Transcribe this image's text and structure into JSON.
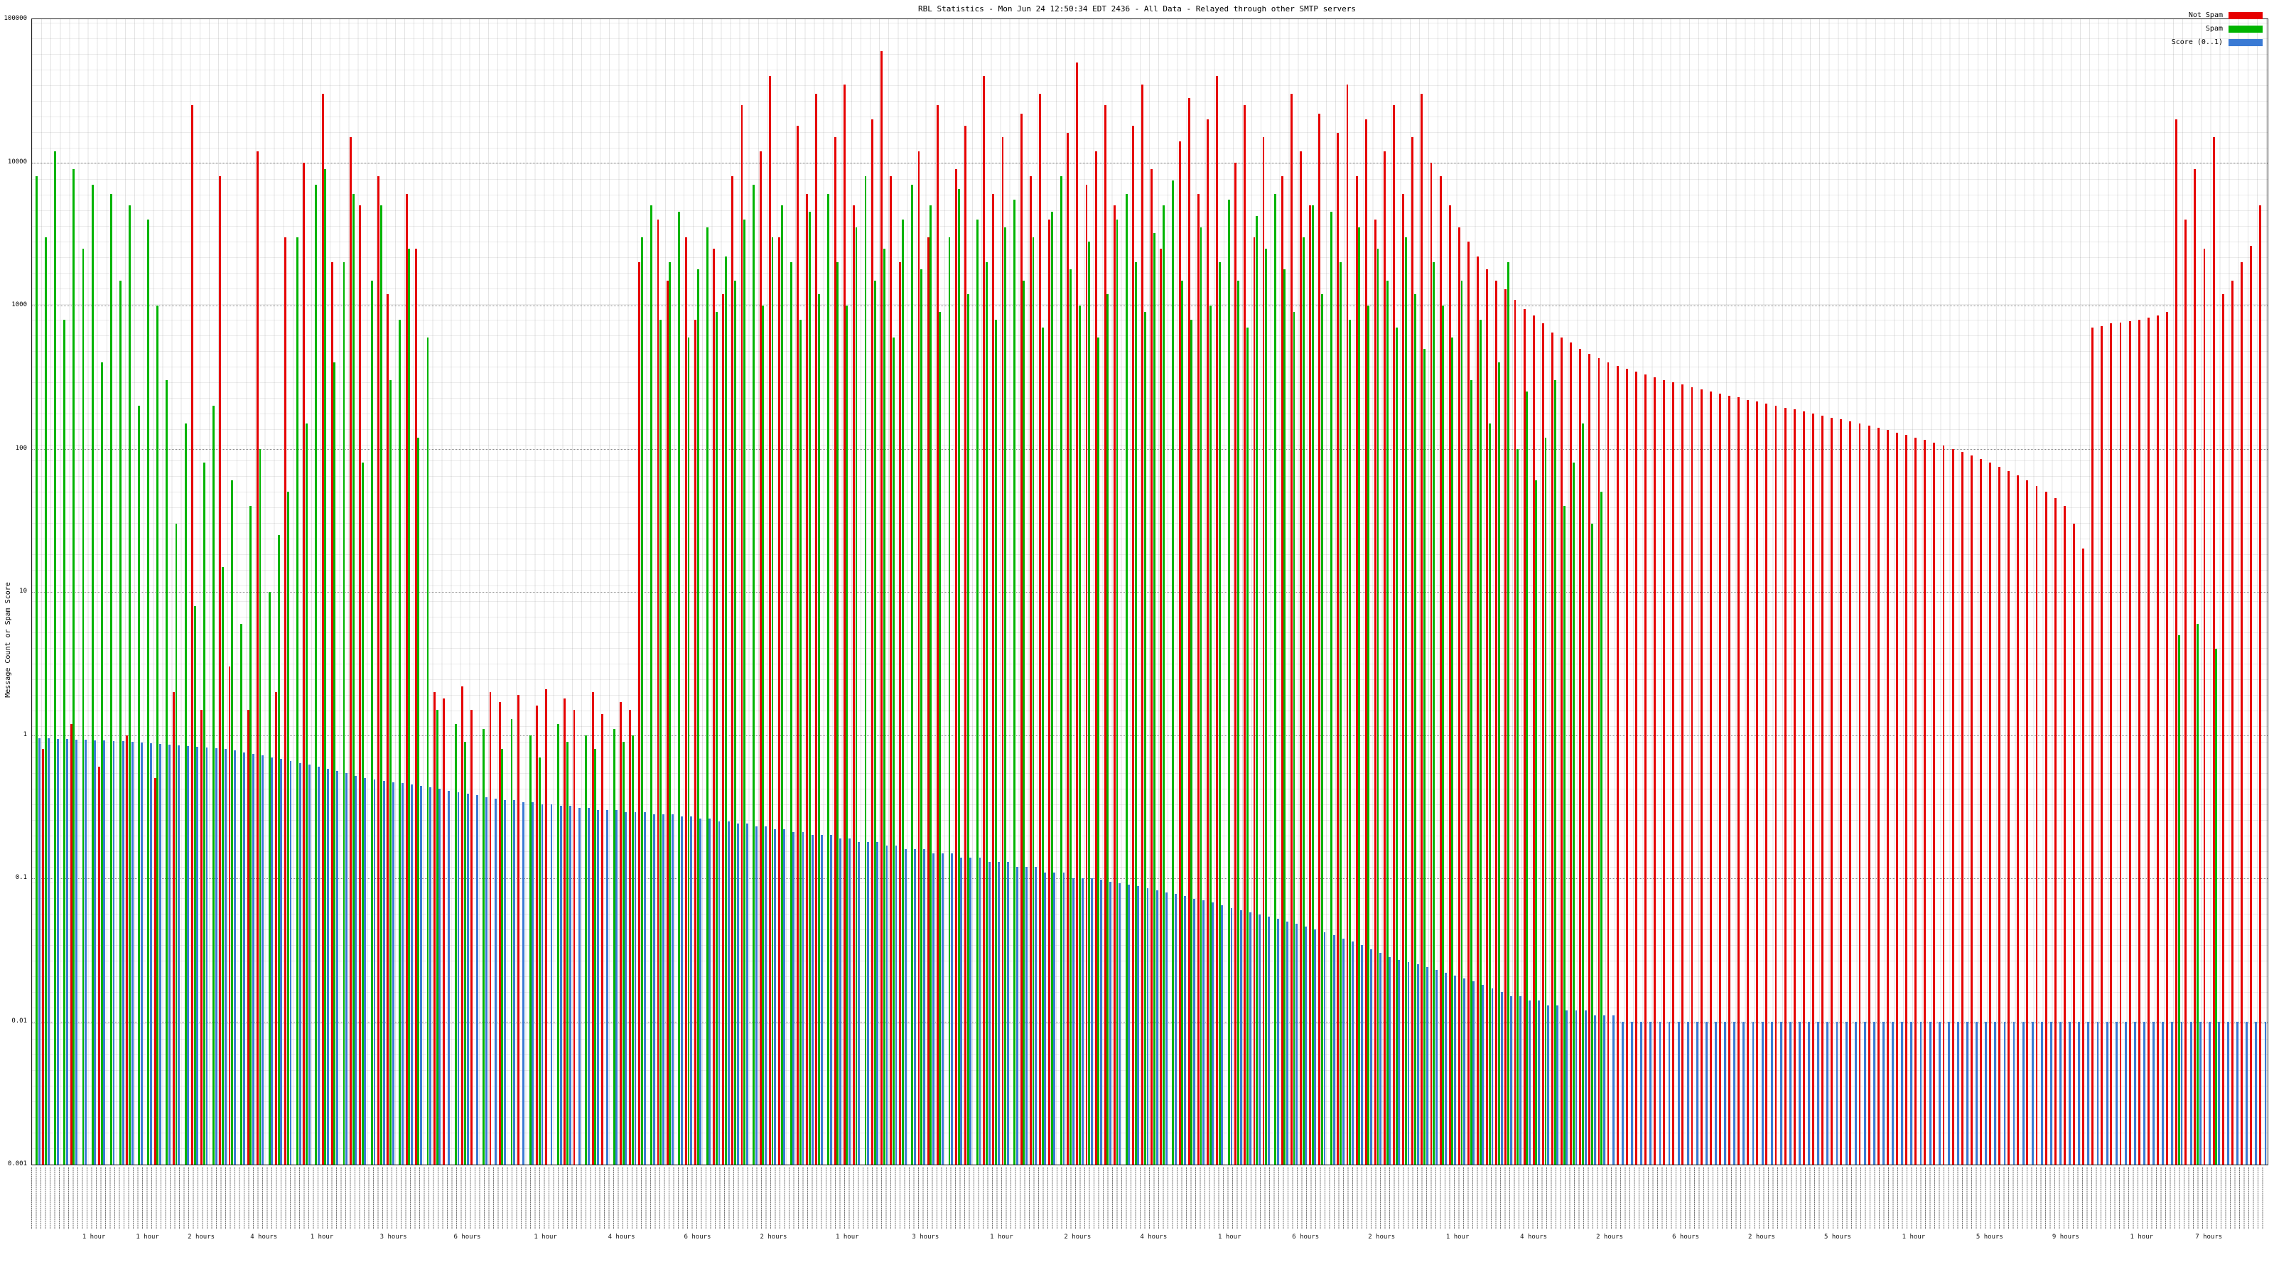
{
  "chart_data": {
    "type": "bar",
    "title": "RBL Statistics - Mon Jun 24 12:50:34 EDT 2436 - All Data - Relayed through other SMTP servers",
    "ylabel": "Message Count or Spam Score",
    "y_scale": "log",
    "ylim": [
      0.001,
      100000
    ],
    "yticks": [
      "100000",
      "10000",
      "1000",
      "100",
      "10",
      "1",
      "0.1",
      "0.01",
      "0.001"
    ],
    "grid": true,
    "legend_position": "top-right",
    "xtick_labels_illegible": true,
    "series": [
      {
        "name": "Not Spam",
        "color": "#e60000",
        "values": [
          0,
          0.8,
          0,
          0,
          1.2,
          0,
          0,
          0.6,
          0,
          0,
          1,
          0,
          0,
          0.5,
          0,
          2,
          0,
          25000,
          1.5,
          0,
          8000,
          3,
          0,
          1.5,
          12000,
          0,
          2,
          3000,
          0,
          10000,
          0,
          30000,
          2000,
          0,
          15000,
          5000,
          0,
          8000,
          1200,
          0,
          6000,
          2500,
          0,
          2,
          1.8,
          0,
          2.2,
          1.5,
          0,
          2,
          1.7,
          0,
          1.9,
          0,
          1.6,
          2.1,
          0,
          1.8,
          1.5,
          0,
          2,
          1.4,
          0,
          1.7,
          1.5,
          2000,
          0,
          4000,
          1500,
          0,
          3000,
          800,
          0,
          2500,
          1200,
          8000,
          25000,
          0,
          12000,
          40000,
          3000,
          0,
          18000,
          6000,
          30000,
          0,
          15000,
          35000,
          5000,
          0,
          20000,
          60000,
          8000,
          2000,
          0,
          12000,
          3000,
          25000,
          0,
          9000,
          18000,
          0,
          40000,
          6000,
          15000,
          0,
          22000,
          8000,
          30000,
          4000,
          0,
          16000,
          50000,
          7000,
          12000,
          25000,
          5000,
          0,
          18000,
          35000,
          9000,
          2500,
          0,
          14000,
          28000,
          6000,
          20000,
          40000,
          0,
          10000,
          25000,
          3000,
          15000,
          0,
          8000,
          30000,
          12000,
          5000,
          22000,
          0,
          16000,
          35000,
          8000,
          20000,
          4000,
          12000,
          25000,
          6000,
          15000,
          30000,
          10000,
          8000,
          5000,
          3500,
          2800,
          2200,
          1800,
          1500,
          1300,
          1100,
          950,
          850,
          750,
          650,
          600,
          550,
          500,
          460,
          430,
          400,
          380,
          360,
          345,
          330,
          315,
          300,
          290,
          280,
          270,
          260,
          250,
          242,
          235,
          228,
          220,
          213,
          206,
          200,
          194,
          188,
          182,
          176,
          170,
          165,
          160,
          155,
          150,
          145,
          140,
          135,
          130,
          125,
          120,
          115,
          110,
          105,
          100,
          95,
          90,
          85,
          80,
          75,
          70,
          65,
          60,
          55,
          50,
          45,
          40,
          30,
          20,
          700,
          720,
          750,
          760,
          780,
          800,
          820,
          850,
          900,
          20000,
          4000,
          9000,
          2500,
          15000,
          1200,
          1500,
          2000,
          2600,
          5000
        ]
      },
      {
        "name": "Spam",
        "color": "#00b400",
        "values": [
          8000,
          3000,
          12000,
          800,
          9000,
          2500,
          7000,
          400,
          6000,
          1500,
          5000,
          200,
          4000,
          1000,
          300,
          30,
          150,
          8,
          80,
          200,
          15,
          60,
          6,
          40,
          100,
          10,
          25,
          50,
          3000,
          150,
          7000,
          9000,
          400,
          2000,
          6000,
          80,
          1500,
          5000,
          300,
          800,
          2500,
          120,
          600,
          1.5,
          0,
          1.2,
          0.9,
          0,
          1.1,
          0,
          0.8,
          1.3,
          0,
          1,
          0.7,
          0,
          1.2,
          0.9,
          0,
          1,
          0.8,
          0,
          1.1,
          0.9,
          1,
          3000,
          5000,
          800,
          2000,
          4500,
          600,
          1800,
          3500,
          900,
          2200,
          1500,
          4000,
          7000,
          1000,
          3000,
          5000,
          2000,
          800,
          4500,
          1200,
          6000,
          2000,
          1000,
          3500,
          8000,
          1500,
          2500,
          600,
          4000,
          7000,
          1800,
          5000,
          900,
          3000,
          6500,
          1200,
          4000,
          2000,
          800,
          3500,
          5500,
          1500,
          3000,
          700,
          4500,
          8000,
          1800,
          1000,
          2800,
          600,
          1200,
          4000,
          6000,
          2000,
          900,
          3200,
          5000,
          7500,
          1500,
          800,
          3500,
          1000,
          2000,
          5500,
          1500,
          700,
          4200,
          2500,
          6000,
          1800,
          900,
          3000,
          5000,
          1200,
          4500,
          2000,
          800,
          3500,
          1000,
          2500,
          1500,
          700,
          3000,
          1200,
          500,
          2000,
          1000,
          600,
          1500,
          300,
          800,
          150,
          400,
          2000,
          100,
          250,
          60,
          120,
          300,
          40,
          80,
          150,
          30,
          50,
          0,
          0,
          0,
          0,
          0,
          0,
          0,
          0,
          0,
          0,
          0,
          0,
          0,
          0,
          0,
          0,
          0,
          0,
          0,
          0,
          0,
          0,
          0,
          0,
          0,
          0,
          0,
          0,
          0,
          0,
          0,
          0,
          0,
          0,
          0,
          0,
          0,
          0,
          0,
          0,
          0,
          0,
          0,
          0,
          0,
          0,
          0,
          0,
          0,
          0,
          0,
          0,
          0,
          0,
          0,
          0,
          0,
          0,
          0,
          0,
          0,
          5,
          0,
          6,
          0,
          4,
          0,
          0,
          0,
          0,
          0
        ]
      },
      {
        "name": "Score (0..1)",
        "color": "#3a7ad4",
        "values": [
          0.95,
          0.95,
          0.94,
          0.94,
          0.93,
          0.93,
          0.92,
          0.92,
          0.91,
          0.91,
          0.9,
          0.89,
          0.88,
          0.87,
          0.86,
          0.85,
          0.84,
          0.83,
          0.82,
          0.81,
          0.8,
          0.78,
          0.76,
          0.74,
          0.72,
          0.7,
          0.68,
          0.66,
          0.64,
          0.62,
          0.6,
          0.58,
          0.56,
          0.54,
          0.52,
          0.5,
          0.49,
          0.48,
          0.47,
          0.46,
          0.45,
          0.44,
          0.43,
          0.42,
          0.41,
          0.4,
          0.39,
          0.38,
          0.37,
          0.36,
          0.35,
          0.35,
          0.34,
          0.34,
          0.33,
          0.33,
          0.32,
          0.32,
          0.31,
          0.31,
          0.3,
          0.3,
          0.3,
          0.29,
          0.29,
          0.29,
          0.28,
          0.28,
          0.28,
          0.27,
          0.27,
          0.26,
          0.26,
          0.25,
          0.25,
          0.24,
          0.24,
          0.23,
          0.23,
          0.22,
          0.22,
          0.21,
          0.21,
          0.2,
          0.2,
          0.2,
          0.19,
          0.19,
          0.18,
          0.18,
          0.18,
          0.17,
          0.17,
          0.16,
          0.16,
          0.16,
          0.15,
          0.15,
          0.15,
          0.14,
          0.14,
          0.14,
          0.13,
          0.13,
          0.13,
          0.12,
          0.12,
          0.12,
          0.11,
          0.11,
          0.11,
          0.1,
          0.1,
          0.1,
          0.098,
          0.095,
          0.092,
          0.09,
          0.088,
          0.085,
          0.082,
          0.08,
          0.078,
          0.075,
          0.072,
          0.07,
          0.068,
          0.065,
          0.062,
          0.06,
          0.058,
          0.056,
          0.054,
          0.052,
          0.05,
          0.048,
          0.046,
          0.044,
          0.042,
          0.04,
          0.038,
          0.036,
          0.034,
          0.032,
          0.03,
          0.028,
          0.027,
          0.026,
          0.025,
          0.024,
          0.023,
          0.022,
          0.021,
          0.02,
          0.019,
          0.018,
          0.017,
          0.016,
          0.015,
          0.015,
          0.014,
          0.014,
          0.013,
          0.013,
          0.012,
          0.012,
          0.012,
          0.011,
          0.011,
          0.011,
          0.01,
          0.01,
          0.01,
          0.01,
          0.01,
          0.01,
          0.01,
          0.01,
          0.01,
          0.01,
          0.01,
          0.01,
          0.01,
          0.01,
          0.01,
          0.01,
          0.01,
          0.01,
          0.01,
          0.01,
          0.01,
          0.01,
          0.01,
          0.01,
          0.01,
          0.01,
          0.01,
          0.01,
          0.01,
          0.01,
          0.01,
          0.01,
          0.01,
          0.01,
          0.01,
          0.01,
          0.01,
          0.01,
          0.01,
          0.01,
          0.01,
          0.01,
          0.01,
          0.01,
          0.01,
          0.01,
          0.01,
          0.01,
          0.01,
          0.01,
          0.01,
          0.01,
          0.01,
          0.01,
          0.01,
          0.01,
          0.01,
          0.01,
          0.01,
          0.01,
          0.01,
          0.01,
          0.01,
          0.01,
          0.01,
          0.01,
          0.01,
          0.01,
          0.01,
          0.01
        ]
      }
    ],
    "xtick_hour_labels": [
      {
        "p": 2.8,
        "t": "1 hour"
      },
      {
        "p": 5.2,
        "t": "1 hour"
      },
      {
        "p": 7.6,
        "t": "2 hours"
      },
      {
        "p": 10.4,
        "t": "4 hours"
      },
      {
        "p": 13.0,
        "t": "1 hour"
      },
      {
        "p": 16.2,
        "t": "3 hours"
      },
      {
        "p": 19.5,
        "t": "6 hours"
      },
      {
        "p": 23.0,
        "t": "1 hour"
      },
      {
        "p": 26.4,
        "t": "4 hours"
      },
      {
        "p": 29.8,
        "t": "6 hours"
      },
      {
        "p": 33.2,
        "t": "2 hours"
      },
      {
        "p": 36.5,
        "t": "1 hour"
      },
      {
        "p": 40.0,
        "t": "3 hours"
      },
      {
        "p": 43.4,
        "t": "1 hour"
      },
      {
        "p": 46.8,
        "t": "2 hours"
      },
      {
        "p": 50.2,
        "t": "4 hours"
      },
      {
        "p": 53.6,
        "t": "1 hour"
      },
      {
        "p": 57.0,
        "t": "6 hours"
      },
      {
        "p": 60.4,
        "t": "2 hours"
      },
      {
        "p": 63.8,
        "t": "1 hour"
      },
      {
        "p": 67.2,
        "t": "4 hours"
      },
      {
        "p": 70.6,
        "t": "2 hours"
      },
      {
        "p": 74.0,
        "t": "6 hours"
      },
      {
        "p": 77.4,
        "t": "2 hours"
      },
      {
        "p": 80.8,
        "t": "5 hours"
      },
      {
        "p": 84.2,
        "t": "1 hour"
      },
      {
        "p": 87.6,
        "t": "5 hours"
      },
      {
        "p": 91.0,
        "t": "9 hours"
      },
      {
        "p": 94.4,
        "t": "1 hour"
      },
      {
        "p": 97.4,
        "t": "7 hours"
      }
    ]
  }
}
